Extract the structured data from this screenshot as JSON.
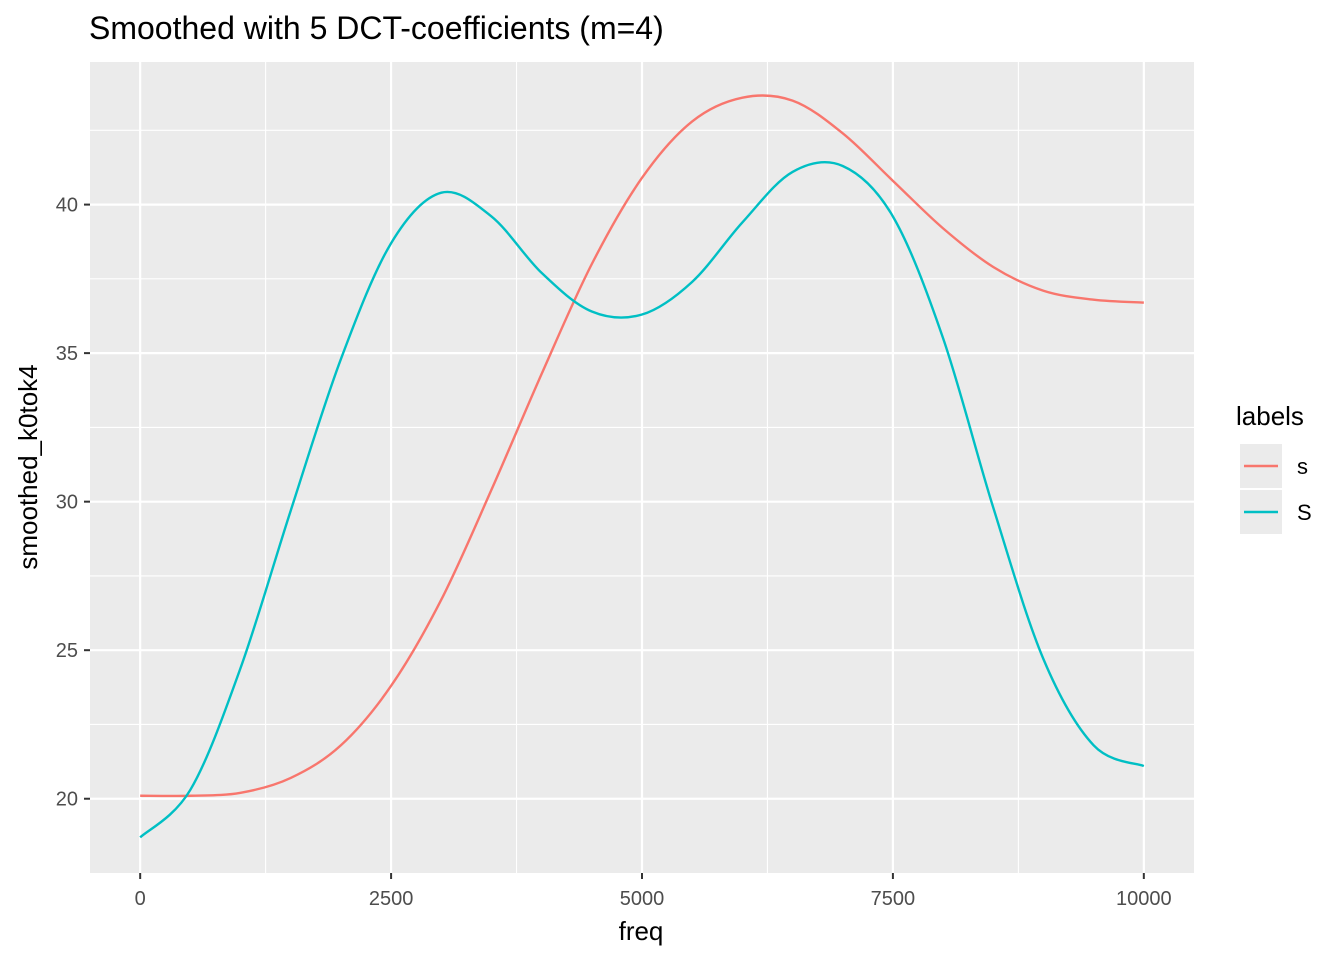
{
  "chart_data": {
    "type": "line",
    "title": "Smoothed with 5 DCT-coefficients (m=4)",
    "xlabel": "freq",
    "ylabel": "smoothed_k0tok4",
    "xlim": [
      -500,
      10500
    ],
    "ylim": [
      17.5,
      44.8
    ],
    "x_ticks": [
      0,
      2500,
      5000,
      7500,
      10000
    ],
    "x_tick_labels": [
      "0",
      "2500",
      "5000",
      "7500",
      "10000"
    ],
    "y_ticks": [
      20,
      25,
      30,
      35,
      40
    ],
    "y_tick_labels": [
      "20",
      "25",
      "30",
      "35",
      "40"
    ],
    "grid": true,
    "legend": {
      "title": "labels",
      "position": "right"
    },
    "series": [
      {
        "name": "s",
        "color": "#F8766D",
        "x": [
          0,
          500,
          1000,
          1500,
          2000,
          2500,
          3000,
          3500,
          4000,
          4500,
          5000,
          5500,
          6000,
          6500,
          7000,
          7500,
          8000,
          8500,
          9000,
          9500,
          10000
        ],
        "y": [
          20.1,
          20.1,
          20.2,
          20.7,
          21.8,
          23.8,
          26.7,
          30.4,
          34.3,
          38.0,
          40.9,
          42.8,
          43.6,
          43.5,
          42.4,
          40.8,
          39.2,
          37.9,
          37.1,
          36.8,
          36.7
        ]
      },
      {
        "name": "S",
        "color": "#00BFC4",
        "x": [
          0,
          500,
          1000,
          1500,
          2000,
          2500,
          3000,
          3500,
          4000,
          4500,
          5000,
          5500,
          6000,
          6500,
          7000,
          7500,
          8000,
          8500,
          9000,
          9500,
          10000
        ],
        "y": [
          18.7,
          20.3,
          24.4,
          29.7,
          34.8,
          38.7,
          40.4,
          39.6,
          37.7,
          36.4,
          36.3,
          37.4,
          39.4,
          41.1,
          41.3,
          39.6,
          35.5,
          29.8,
          24.7,
          21.8,
          21.1
        ]
      }
    ]
  }
}
